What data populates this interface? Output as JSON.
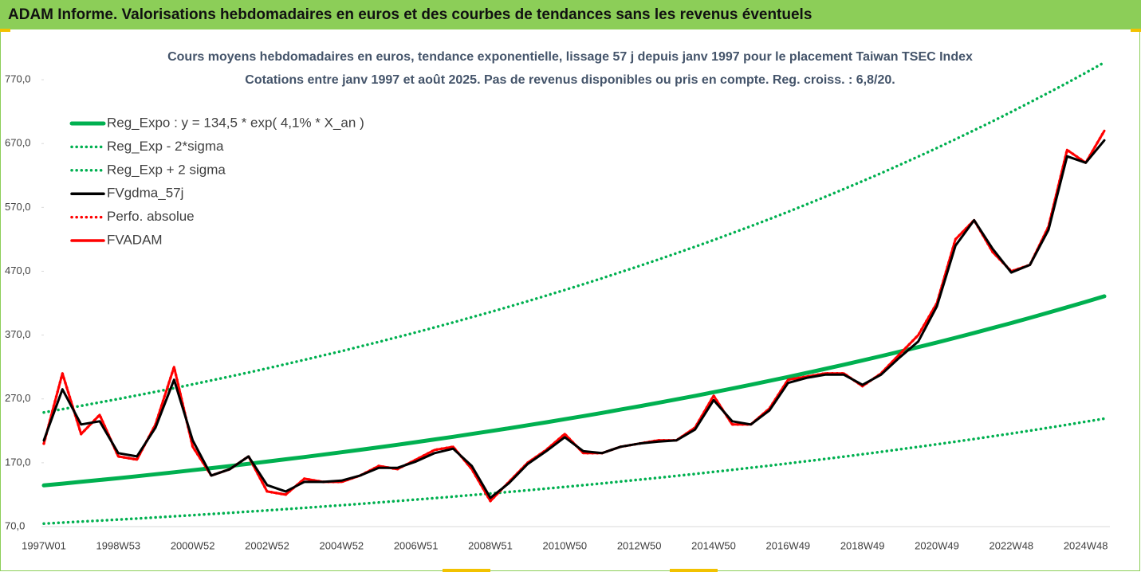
{
  "header": {
    "title": "ADAM Informe. Valorisations hebdomadaires en euros et des courbes de tendances sans les revenus éventuels"
  },
  "chart_data": {
    "type": "line",
    "title": "Cours moyens hebdomadaires en euros, tendance exponentielle, lissage 57 j depuis janv 1997 pour le placement Taiwan TSEC Index",
    "subtitle": "Cotations entre janv 1997 et août 2025.  Pas de revenus disponibles ou pris en compte. Reg. croiss. : 6,8/20.",
    "categories": [
      "1997W01",
      null,
      null,
      null,
      "1998W53",
      null,
      null,
      null,
      "2000W52",
      null,
      null,
      null,
      "2002W52",
      null,
      null,
      null,
      "2004W52",
      null,
      null,
      null,
      "2006W51",
      null,
      null,
      null,
      "2008W51",
      null,
      null,
      null,
      "2010W50",
      null,
      null,
      null,
      "2012W50",
      null,
      null,
      null,
      "2014W50",
      null,
      null,
      null,
      "2016W49",
      null,
      null,
      null,
      "2018W49",
      null,
      null,
      null,
      "2020W49",
      null,
      null,
      null,
      "2022W48",
      null,
      null,
      null,
      "2024W48",
      null
    ],
    "ylim": [
      70,
      830
    ],
    "yticks": [
      {
        "value": 70,
        "label": "70,0"
      },
      {
        "value": 170,
        "label": "170,0"
      },
      {
        "value": 270,
        "label": "270,0"
      },
      {
        "value": 370,
        "label": "370,0"
      },
      {
        "value": 470,
        "label": "470,0"
      },
      {
        "value": 570,
        "label": "570,0"
      },
      {
        "value": 670,
        "label": "670,0"
      },
      {
        "value": 770,
        "label": "770,0"
      }
    ],
    "legend": "top-left",
    "series": [
      {
        "name": "Reg_Expo : y = 134,5 * exp( 4,1% *  X_an )",
        "color": "#00b050",
        "style": "solid",
        "values": [
          134.5,
          137.3,
          140.1,
          143.0,
          145.9,
          148.9,
          152.0,
          155.1,
          158.3,
          161.6,
          164.9,
          168.3,
          171.8,
          175.4,
          179.0,
          182.7,
          186.4,
          190.3,
          194.2,
          198.2,
          202.3,
          206.5,
          210.7,
          215.1,
          219.5,
          224.0,
          228.7,
          233.4,
          238.2,
          243.1,
          248.1,
          253.3,
          258.5,
          263.8,
          269.3,
          274.8,
          280.5,
          286.3,
          292.2,
          298.2,
          304.4,
          310.7,
          317.1,
          323.6,
          330.3,
          337.1,
          344.1,
          351.2,
          358.4,
          365.8,
          373.4,
          381.1,
          388.9,
          397.0,
          405.2,
          413.5,
          422.1,
          430.8
        ]
      },
      {
        "name": "Reg_Exp - 2*sigma",
        "color": "#00b050",
        "style": "dotted",
        "values": [
          74.6,
          76.2,
          77.8,
          79.4,
          81.0,
          82.6,
          84.4,
          86.1,
          87.9,
          89.7,
          91.5,
          93.4,
          95.3,
          97.3,
          99.3,
          101.4,
          103.5,
          105.6,
          107.8,
          110.0,
          112.3,
          114.6,
          116.9,
          119.4,
          121.8,
          124.3,
          126.9,
          129.5,
          132.2,
          134.9,
          137.7,
          140.6,
          143.5,
          146.4,
          149.5,
          152.5,
          155.7,
          158.9,
          162.2,
          165.5,
          168.9,
          172.4,
          176.0,
          179.6,
          183.3,
          187.1,
          191.0,
          194.9,
          198.9,
          203.0,
          207.2,
          211.5,
          215.8,
          220.3,
          224.9,
          229.5,
          234.3,
          239.1
        ]
      },
      {
        "name": "Reg_Exp + 2 sigma",
        "color": "#00b050",
        "style": "dotted",
        "values": [
          248.8,
          254.0,
          259.2,
          264.6,
          269.9,
          275.5,
          281.2,
          286.9,
          292.9,
          299.0,
          305.1,
          311.4,
          317.8,
          324.5,
          331.2,
          338.0,
          344.8,
          352.1,
          359.3,
          366.7,
          374.3,
          382.0,
          389.8,
          397.9,
          406.1,
          414.4,
          423.1,
          431.8,
          440.7,
          449.7,
          459.0,
          468.6,
          478.2,
          488.0,
          498.2,
          508.4,
          518.9,
          529.7,
          540.6,
          551.7,
          563.1,
          574.8,
          586.6,
          598.7,
          611.1,
          623.6,
          636.6,
          649.7,
          663.0,
          676.7,
          690.8,
          705.0,
          719.5,
          734.5,
          749.6,
          765.0,
          780.9,
          797.0
        ]
      },
      {
        "name": "FVgdma_57j",
        "color": "#000000",
        "style": "solid",
        "values": [
          205,
          285,
          230,
          235,
          185,
          180,
          225,
          300,
          205,
          150,
          160,
          180,
          135,
          125,
          140,
          140,
          142,
          150,
          162,
          162,
          172,
          185,
          192,
          165,
          115,
          138,
          168,
          188,
          210,
          188,
          185,
          195,
          200,
          203,
          205,
          222,
          268,
          235,
          230,
          252,
          295,
          303,
          308,
          308,
          292,
          308,
          335,
          360,
          415,
          510,
          550,
          505,
          468,
          480,
          535,
          650,
          640,
          675
        ]
      },
      {
        "name": "Perfo. absolue",
        "color": "#ff0000",
        "style": "dotted",
        "values": [
          200,
          310,
          215,
          245,
          180,
          175,
          230,
          320,
          195,
          150,
          160,
          180,
          125,
          120,
          145,
          140,
          140,
          150,
          165,
          160,
          175,
          190,
          195,
          160,
          110,
          140,
          170,
          190,
          215,
          185,
          185,
          195,
          200,
          205,
          205,
          225,
          275,
          230,
          230,
          255,
          300,
          305,
          310,
          310,
          290,
          310,
          340,
          370,
          420,
          520,
          550,
          500,
          470,
          480,
          540,
          660,
          640,
          690
        ]
      },
      {
        "name": "FVADAM",
        "color": "#ff0000",
        "style": "solid",
        "values": [
          200,
          310,
          215,
          245,
          180,
          175,
          230,
          320,
          195,
          150,
          160,
          180,
          125,
          120,
          145,
          140,
          140,
          150,
          165,
          160,
          175,
          190,
          195,
          160,
          110,
          140,
          170,
          190,
          215,
          185,
          185,
          195,
          200,
          205,
          205,
          225,
          275,
          230,
          230,
          255,
          300,
          305,
          310,
          310,
          290,
          310,
          340,
          370,
          420,
          520,
          550,
          500,
          470,
          480,
          540,
          660,
          640,
          690
        ]
      }
    ]
  }
}
